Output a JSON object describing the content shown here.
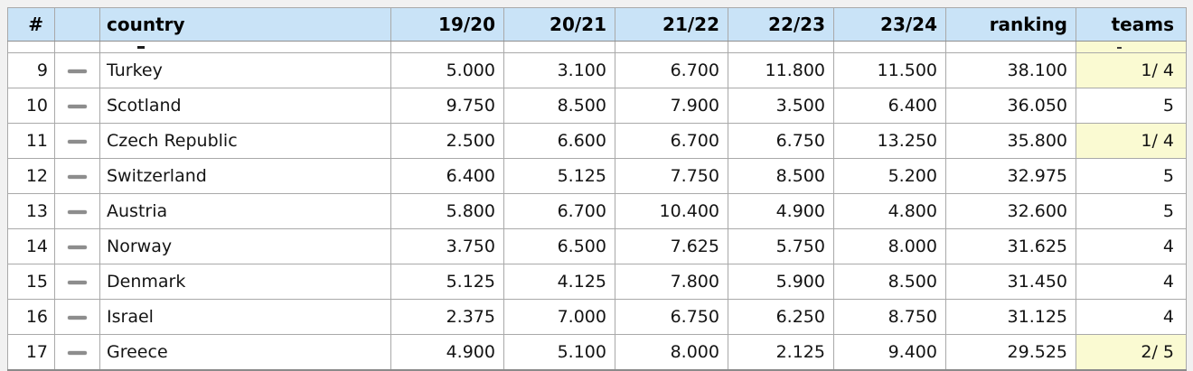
{
  "page": {
    "background_color": "#f1f1f1"
  },
  "colors": {
    "header_background": "#c9e3f7",
    "teams_highlight": "#fafad2",
    "grid_line": "#a9a9a9",
    "trend_dash": "#8d8d8d"
  },
  "table": {
    "header": {
      "columns": [
        {
          "key": "num",
          "label": "#"
        },
        {
          "key": "trend",
          "label": ""
        },
        {
          "key": "country",
          "label": "country"
        },
        {
          "key": "s1",
          "label": "19/20"
        },
        {
          "key": "s2",
          "label": "20/21"
        },
        {
          "key": "s3",
          "label": "21/22"
        },
        {
          "key": "s4",
          "label": "22/23"
        },
        {
          "key": "s5",
          "label": "23/24"
        },
        {
          "key": "ranking",
          "label": "ranking"
        },
        {
          "key": "teams",
          "label": "teams"
        }
      ]
    },
    "partial_row": {
      "country_fragment": "-",
      "teams_fragment": "-",
      "teams_highlight": true
    },
    "rows": [
      {
        "num": "9",
        "trend": "same",
        "country": "Turkey",
        "s1": "5.000",
        "s2": "3.100",
        "s3": "6.700",
        "s4": "11.800",
        "s5": "11.500",
        "ranking": "38.100",
        "teams": "1/ 4",
        "teams_highlight": true
      },
      {
        "num": "10",
        "trend": "same",
        "country": "Scotland",
        "s1": "9.750",
        "s2": "8.500",
        "s3": "7.900",
        "s4": "3.500",
        "s5": "6.400",
        "ranking": "36.050",
        "teams": "5",
        "teams_highlight": false
      },
      {
        "num": "11",
        "trend": "same",
        "country": "Czech Republic",
        "s1": "2.500",
        "s2": "6.600",
        "s3": "6.700",
        "s4": "6.750",
        "s5": "13.250",
        "ranking": "35.800",
        "teams": "1/ 4",
        "teams_highlight": true
      },
      {
        "num": "12",
        "trend": "same",
        "country": "Switzerland",
        "s1": "6.400",
        "s2": "5.125",
        "s3": "7.750",
        "s4": "8.500",
        "s5": "5.200",
        "ranking": "32.975",
        "teams": "5",
        "teams_highlight": false
      },
      {
        "num": "13",
        "trend": "same",
        "country": "Austria",
        "s1": "5.800",
        "s2": "6.700",
        "s3": "10.400",
        "s4": "4.900",
        "s5": "4.800",
        "ranking": "32.600",
        "teams": "5",
        "teams_highlight": false
      },
      {
        "num": "14",
        "trend": "same",
        "country": "Norway",
        "s1": "3.750",
        "s2": "6.500",
        "s3": "7.625",
        "s4": "5.750",
        "s5": "8.000",
        "ranking": "31.625",
        "teams": "4",
        "teams_highlight": false
      },
      {
        "num": "15",
        "trend": "same",
        "country": "Denmark",
        "s1": "5.125",
        "s2": "4.125",
        "s3": "7.800",
        "s4": "5.900",
        "s5": "8.500",
        "ranking": "31.450",
        "teams": "4",
        "teams_highlight": false
      },
      {
        "num": "16",
        "trend": "same",
        "country": "Israel",
        "s1": "2.375",
        "s2": "7.000",
        "s3": "6.750",
        "s4": "6.250",
        "s5": "8.750",
        "ranking": "31.125",
        "teams": "4",
        "teams_highlight": false
      },
      {
        "num": "17",
        "trend": "same",
        "country": "Greece",
        "s1": "4.900",
        "s2": "5.100",
        "s3": "8.000",
        "s4": "2.125",
        "s5": "9.400",
        "ranking": "29.525",
        "teams": "2/ 5",
        "teams_highlight": true
      }
    ]
  }
}
